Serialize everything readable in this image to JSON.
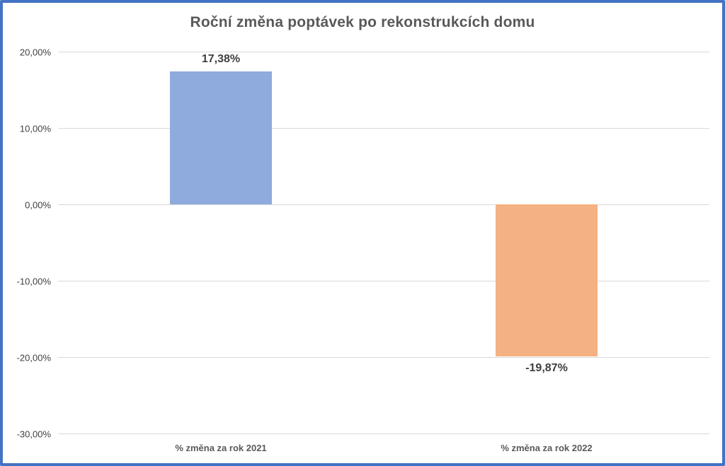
{
  "chart_data": {
    "type": "bar",
    "title": "Roční změna poptávek po rekonstrukcích domu",
    "categories": [
      "% změna za rok 2021",
      "% změna za rok 2022"
    ],
    "values": [
      17.38,
      -19.87
    ],
    "data_labels": [
      "17,38%",
      "-19,87%"
    ],
    "bar_colors": [
      "#8FAADC",
      "#F4B183"
    ],
    "xlabel": "",
    "ylabel": "",
    "ylim": [
      -30,
      20
    ],
    "ytick_values": [
      20,
      10,
      0,
      -10,
      -20,
      -30
    ],
    "ytick_labels": [
      "20,00%",
      "10,00%",
      "0,00%",
      "-10,00%",
      "-20,00%",
      "-30,00%"
    ],
    "grid": true,
    "legend_position": "none"
  },
  "style": {
    "frame_border_color": "#4472C4",
    "background": "#FFFFFF",
    "gridline_color": "#D9D9D9",
    "title_color": "#595959",
    "tick_color": "#404040",
    "data_label_color": "#3F3F3F",
    "category_label_color": "#595959"
  }
}
